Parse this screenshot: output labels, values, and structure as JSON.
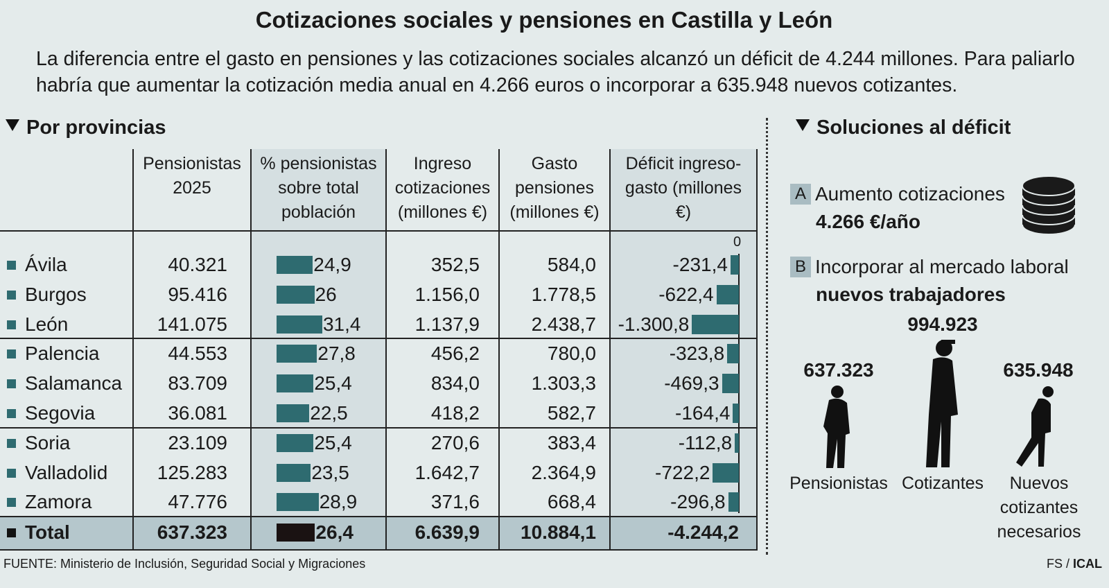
{
  "title": "Cotizaciones sociales y pensiones en Castilla y León",
  "subtitle": "La diferencia entre el gasto en pensiones y las cotizaciones sociales alcanzó un déficit de 4.244 millones. Para paliarlo habría que aumentar la cotización media anual en 4.266 euros o incorporar a 635.948 nuevos cotizantes.",
  "section_left": "Por provincias",
  "section_right": "Soluciones al déficit",
  "colors": {
    "background": "#e4ebeb",
    "shaded_column": "#d5dfe1",
    "total_row": "#b5c7cc",
    "bar": "#2e6b70",
    "total_bar": "#1a1212"
  },
  "chart_data": {
    "type": "table",
    "columns": [
      "Pensionistas 2025",
      "% pensionistas sobre total población",
      "Ingreso cotizaciones (millones €)",
      "Gasto pensiones (millones €)",
      "Déficit ingreso-gasto (millones €)"
    ],
    "deficit_axis_label": "0",
    "rows": [
      {
        "name": "Ávila",
        "pensionistas": "40.321",
        "pct": "24,9",
        "pct_value": 24.9,
        "ingreso": "352,5",
        "gasto": "584,0",
        "deficit": "-231,4",
        "deficit_value": -231.4
      },
      {
        "name": "Burgos",
        "pensionistas": "95.416",
        "pct": "26",
        "pct_value": 26,
        "ingreso": "1.156,0",
        "gasto": "1.778,5",
        "deficit": "-622,4",
        "deficit_value": -622.4
      },
      {
        "name": "León",
        "pensionistas": "141.075",
        "pct": "31,4",
        "pct_value": 31.4,
        "ingreso": "1.137,9",
        "gasto": "2.438,7",
        "deficit": "-1.300,8",
        "deficit_value": -1300.8
      },
      {
        "name": "Palencia",
        "pensionistas": "44.553",
        "pct": "27,8",
        "pct_value": 27.8,
        "ingreso": "456,2",
        "gasto": "780,0",
        "deficit": "-323,8",
        "deficit_value": -323.8
      },
      {
        "name": "Salamanca",
        "pensionistas": "83.709",
        "pct": "25,4",
        "pct_value": 25.4,
        "ingreso": "834,0",
        "gasto": "1.303,3",
        "deficit": "-469,3",
        "deficit_value": -469.3
      },
      {
        "name": "Segovia",
        "pensionistas": "36.081",
        "pct": "22,5",
        "pct_value": 22.5,
        "ingreso": "418,2",
        "gasto": "582,7",
        "deficit": "-164,4",
        "deficit_value": -164.4
      },
      {
        "name": "Soria",
        "pensionistas": "23.109",
        "pct": "25,4",
        "pct_value": 25.4,
        "ingreso": "270,6",
        "gasto": "383,4",
        "deficit": "-112,8",
        "deficit_value": -112.8
      },
      {
        "name": "Valladolid",
        "pensionistas": "125.283",
        "pct": "23,5",
        "pct_value": 23.5,
        "ingreso": "1.642,7",
        "gasto": "2.364,9",
        "deficit": "-722,2",
        "deficit_value": -722.2
      },
      {
        "name": "Zamora",
        "pensionistas": "47.776",
        "pct": "28,9",
        "pct_value": 28.9,
        "ingreso": "371,6",
        "gasto": "668,4",
        "deficit": "-296,8",
        "deficit_value": -296.8
      }
    ],
    "total": {
      "name": "Total",
      "pensionistas": "637.323",
      "pct": "26,4",
      "pct_value": 26.4,
      "ingreso": "6.639,9",
      "gasto": "10.884,1",
      "deficit": "-4.244,2"
    }
  },
  "solutions": {
    "a": {
      "badge": "A",
      "label": "Aumento cotizaciones",
      "value": "4.266 €/año",
      "icon": "coins-icon"
    },
    "b": {
      "badge": "B",
      "label": "Incorporar al mercado laboral",
      "value": "nuevos trabajadores"
    },
    "people": [
      {
        "number": "637.323",
        "label": "Pensionistas",
        "icon": "elderly-person-icon"
      },
      {
        "number": "994.923",
        "label": "Cotizantes",
        "icon": "worker-person-icon"
      },
      {
        "number": "635.948",
        "label": "Nuevos cotizantes necesarios",
        "icon": "walking-person-icon"
      }
    ]
  },
  "source": "FUENTE: Ministerio de Inclusión, Seguridad Social y Migraciones",
  "credit_fs": "FS /",
  "credit_agency": "ICAL"
}
